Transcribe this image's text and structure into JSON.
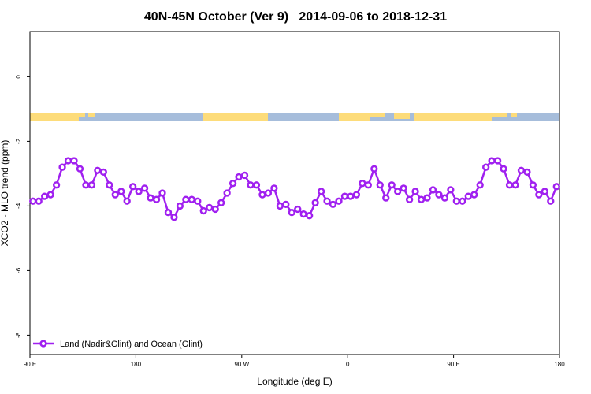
{
  "chart_data": {
    "type": "line",
    "title": "40N-45N October (Ver 9)   2014-09-06 to 2018-12-31",
    "x_label": "Longitude (deg E)",
    "y_label": "XCO2 - MLO trend (ppm)",
    "xlim": [
      90,
      540
    ],
    "xticks": [
      {
        "value": 90,
        "label": "90 E"
      },
      {
        "value": 180,
        "label": "180"
      },
      {
        "value": 270,
        "label": "90 W"
      },
      {
        "value": 360,
        "label": "0"
      },
      {
        "value": 450,
        "label": "90 E"
      },
      {
        "value": 540,
        "label": "180"
      }
    ],
    "ylim": [
      -8.6,
      1.4
    ],
    "yticks": [
      -8,
      -6,
      -4,
      -2,
      0
    ],
    "legend": "bottom-left",
    "x": [
      92.5,
      97.5,
      102.5,
      107.5,
      112.5,
      117.5,
      122.5,
      127.5,
      132.5,
      137.5,
      142.5,
      147.5,
      152.5,
      157.5,
      162.5,
      167.5,
      172.5,
      177.5,
      182.5,
      187.5,
      192.5,
      197.5,
      202.5,
      207.5,
      212.5,
      217.5,
      222.5,
      227.5,
      232.5,
      237.5,
      242.5,
      247.5,
      252.5,
      257.5,
      262.5,
      267.5,
      272.5,
      277.5,
      282.5,
      287.5,
      292.5,
      297.5,
      302.5,
      307.5,
      312.5,
      317.5,
      322.5,
      327.5,
      332.5,
      337.5,
      342.5,
      347.5,
      352.5,
      357.5,
      362.5,
      367.5,
      372.5,
      377.5,
      382.5,
      387.5,
      392.5,
      397.5,
      402.5,
      407.5,
      412.5,
      417.5,
      422.5,
      427.5,
      432.5,
      437.5,
      442.5,
      447.5,
      452.5,
      457.5,
      462.5,
      467.5,
      472.5,
      477.5,
      482.5,
      487.5,
      492.5,
      497.5,
      502.5,
      507.5,
      512.5,
      517.5,
      522.5,
      527.5,
      532.5,
      537.5
    ],
    "series": [
      {
        "name": "Land (Nadir&Glint) and Ocean (Glint)",
        "color": "#a020f0",
        "values": [
          -3.85,
          -3.85,
          -3.7,
          -3.65,
          -3.35,
          -2.8,
          -2.6,
          -2.6,
          -2.85,
          -3.35,
          -3.35,
          -2.9,
          -2.95,
          -3.35,
          -3.65,
          -3.55,
          -3.85,
          -3.4,
          -3.55,
          -3.45,
          -3.75,
          -3.8,
          -3.6,
          -4.2,
          -4.35,
          -4.0,
          -3.8,
          -3.8,
          -3.85,
          -4.15,
          -4.05,
          -4.1,
          -3.9,
          -3.6,
          -3.3,
          -3.1,
          -3.05,
          -3.35,
          -3.35,
          -3.65,
          -3.6,
          -3.45,
          -4.0,
          -3.95,
          -4.2,
          -4.1,
          -4.25,
          -4.3,
          -3.9,
          -3.55,
          -3.85,
          -3.95,
          -3.85,
          -3.7,
          -3.7,
          -3.65,
          -3.3,
          -3.35,
          -2.85,
          -3.35,
          -3.75,
          -3.35,
          -3.55,
          -3.45,
          -3.8,
          -3.55,
          -3.8,
          -3.75,
          -3.5,
          -3.65,
          -3.75,
          -3.5,
          -3.85,
          -3.85,
          -3.7,
          -3.65,
          -3.35,
          -2.8,
          -2.6,
          -2.6,
          -2.85,
          -3.35,
          -3.35,
          -2.9,
          -2.95,
          -3.35,
          -3.65,
          -3.55,
          -3.85,
          -3.4
        ]
      }
    ]
  }
}
